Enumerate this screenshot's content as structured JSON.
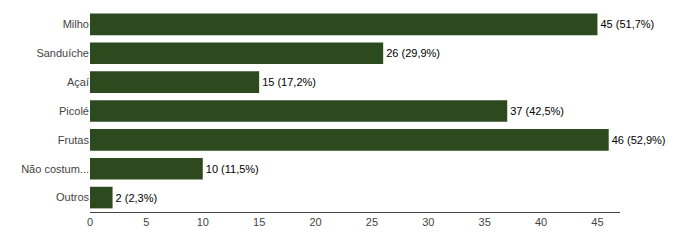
{
  "chart_data": {
    "type": "bar",
    "orientation": "horizontal",
    "categories": [
      "Milho",
      "Sanduíche",
      "Açaí",
      "Picolé",
      "Frutas",
      "Não costum...",
      "Outros"
    ],
    "values": [
      45,
      26,
      15,
      37,
      46,
      10,
      2
    ],
    "value_labels": [
      "45 (51,7%)",
      "26 (29,9%)",
      "15 (17,2%)",
      "37 (42,5%)",
      "46 (52,9%)",
      "10 (11,5%)",
      "2 (2,3%)"
    ],
    "color": "#2d4a1e",
    "xlim": [
      0,
      47
    ],
    "xticks": [
      0,
      5,
      10,
      15,
      20,
      25,
      30,
      35,
      40,
      45
    ],
    "grid": false,
    "data_labels": true
  }
}
